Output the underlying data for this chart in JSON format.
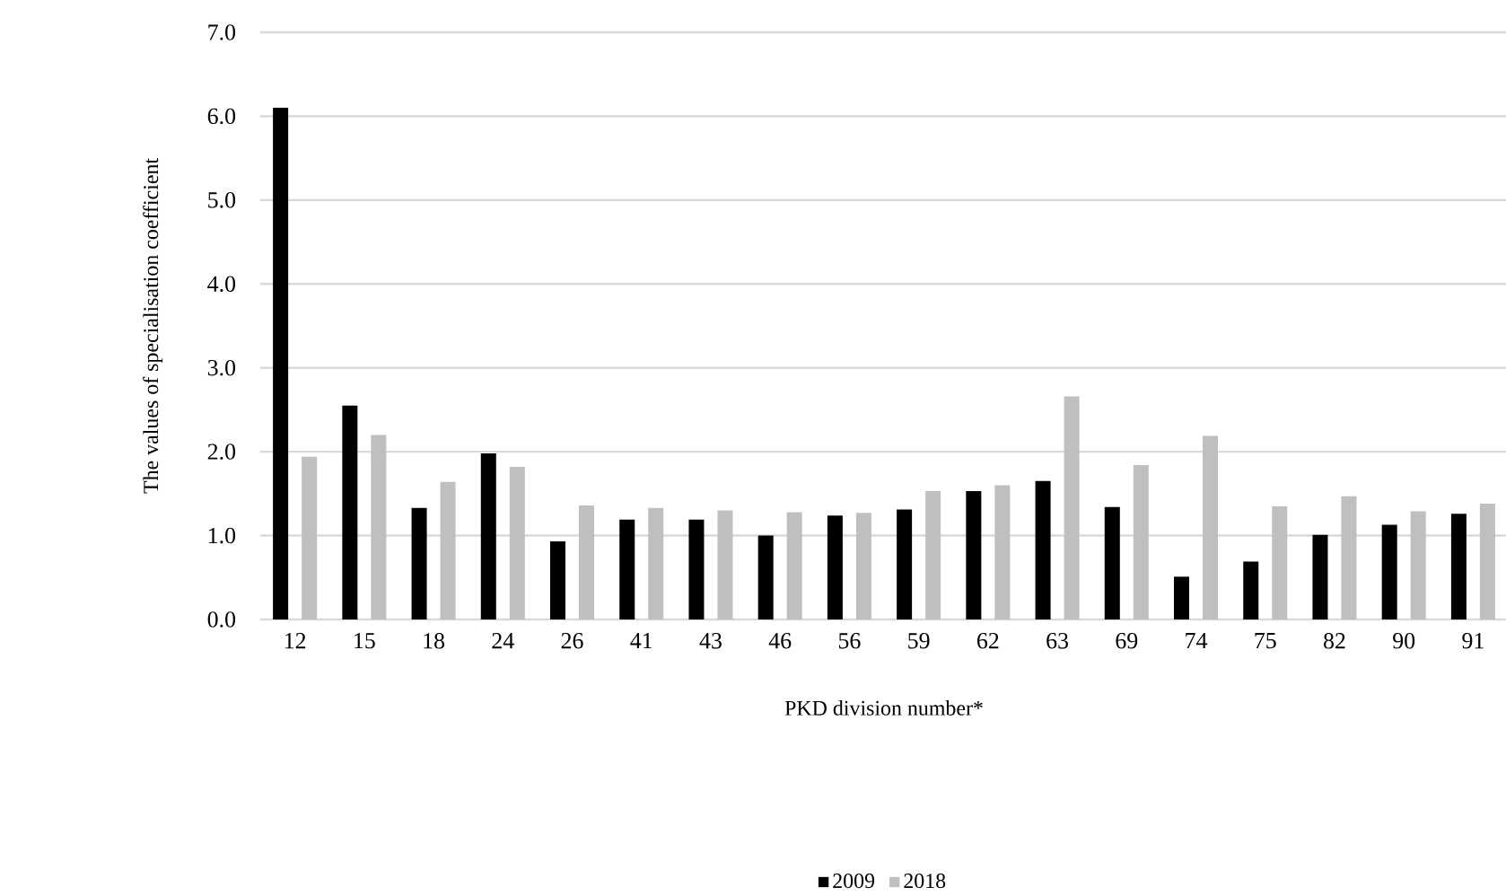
{
  "chart_data": {
    "type": "bar",
    "xlabel": "PKD division number*",
    "ylabel": "The values of specialisation coefficient",
    "categories": [
      "12",
      "15",
      "18",
      "24",
      "26",
      "41",
      "43",
      "46",
      "56",
      "59",
      "62",
      "63",
      "69",
      "74",
      "75",
      "82",
      "90",
      "91"
    ],
    "series": [
      {
        "name": "2009",
        "color": "#000000",
        "values": [
          6.1,
          2.55,
          1.33,
          1.98,
          0.93,
          1.19,
          1.19,
          1.0,
          1.24,
          1.31,
          1.53,
          1.65,
          1.34,
          0.51,
          0.69,
          1.01,
          1.13,
          1.26
        ]
      },
      {
        "name": "2018",
        "color": "#bfbfbf",
        "values": [
          1.94,
          2.2,
          1.64,
          1.82,
          1.36,
          1.33,
          1.3,
          1.28,
          1.27,
          1.53,
          1.6,
          2.66,
          1.84,
          2.19,
          1.35,
          1.47,
          1.29,
          1.38
        ]
      }
    ],
    "ylim": [
      0,
      7
    ],
    "yticks": [
      {
        "value": 0,
        "label": "0.0"
      },
      {
        "value": 1,
        "label": "1.0"
      },
      {
        "value": 2,
        "label": "2.0"
      },
      {
        "value": 3,
        "label": "3.0"
      },
      {
        "value": 4,
        "label": "4.0"
      },
      {
        "value": 5,
        "label": "5.0"
      },
      {
        "value": 6,
        "label": "6.0"
      },
      {
        "value": 7,
        "label": "7.0"
      }
    ],
    "grid": "y",
    "legend": "bottom"
  }
}
